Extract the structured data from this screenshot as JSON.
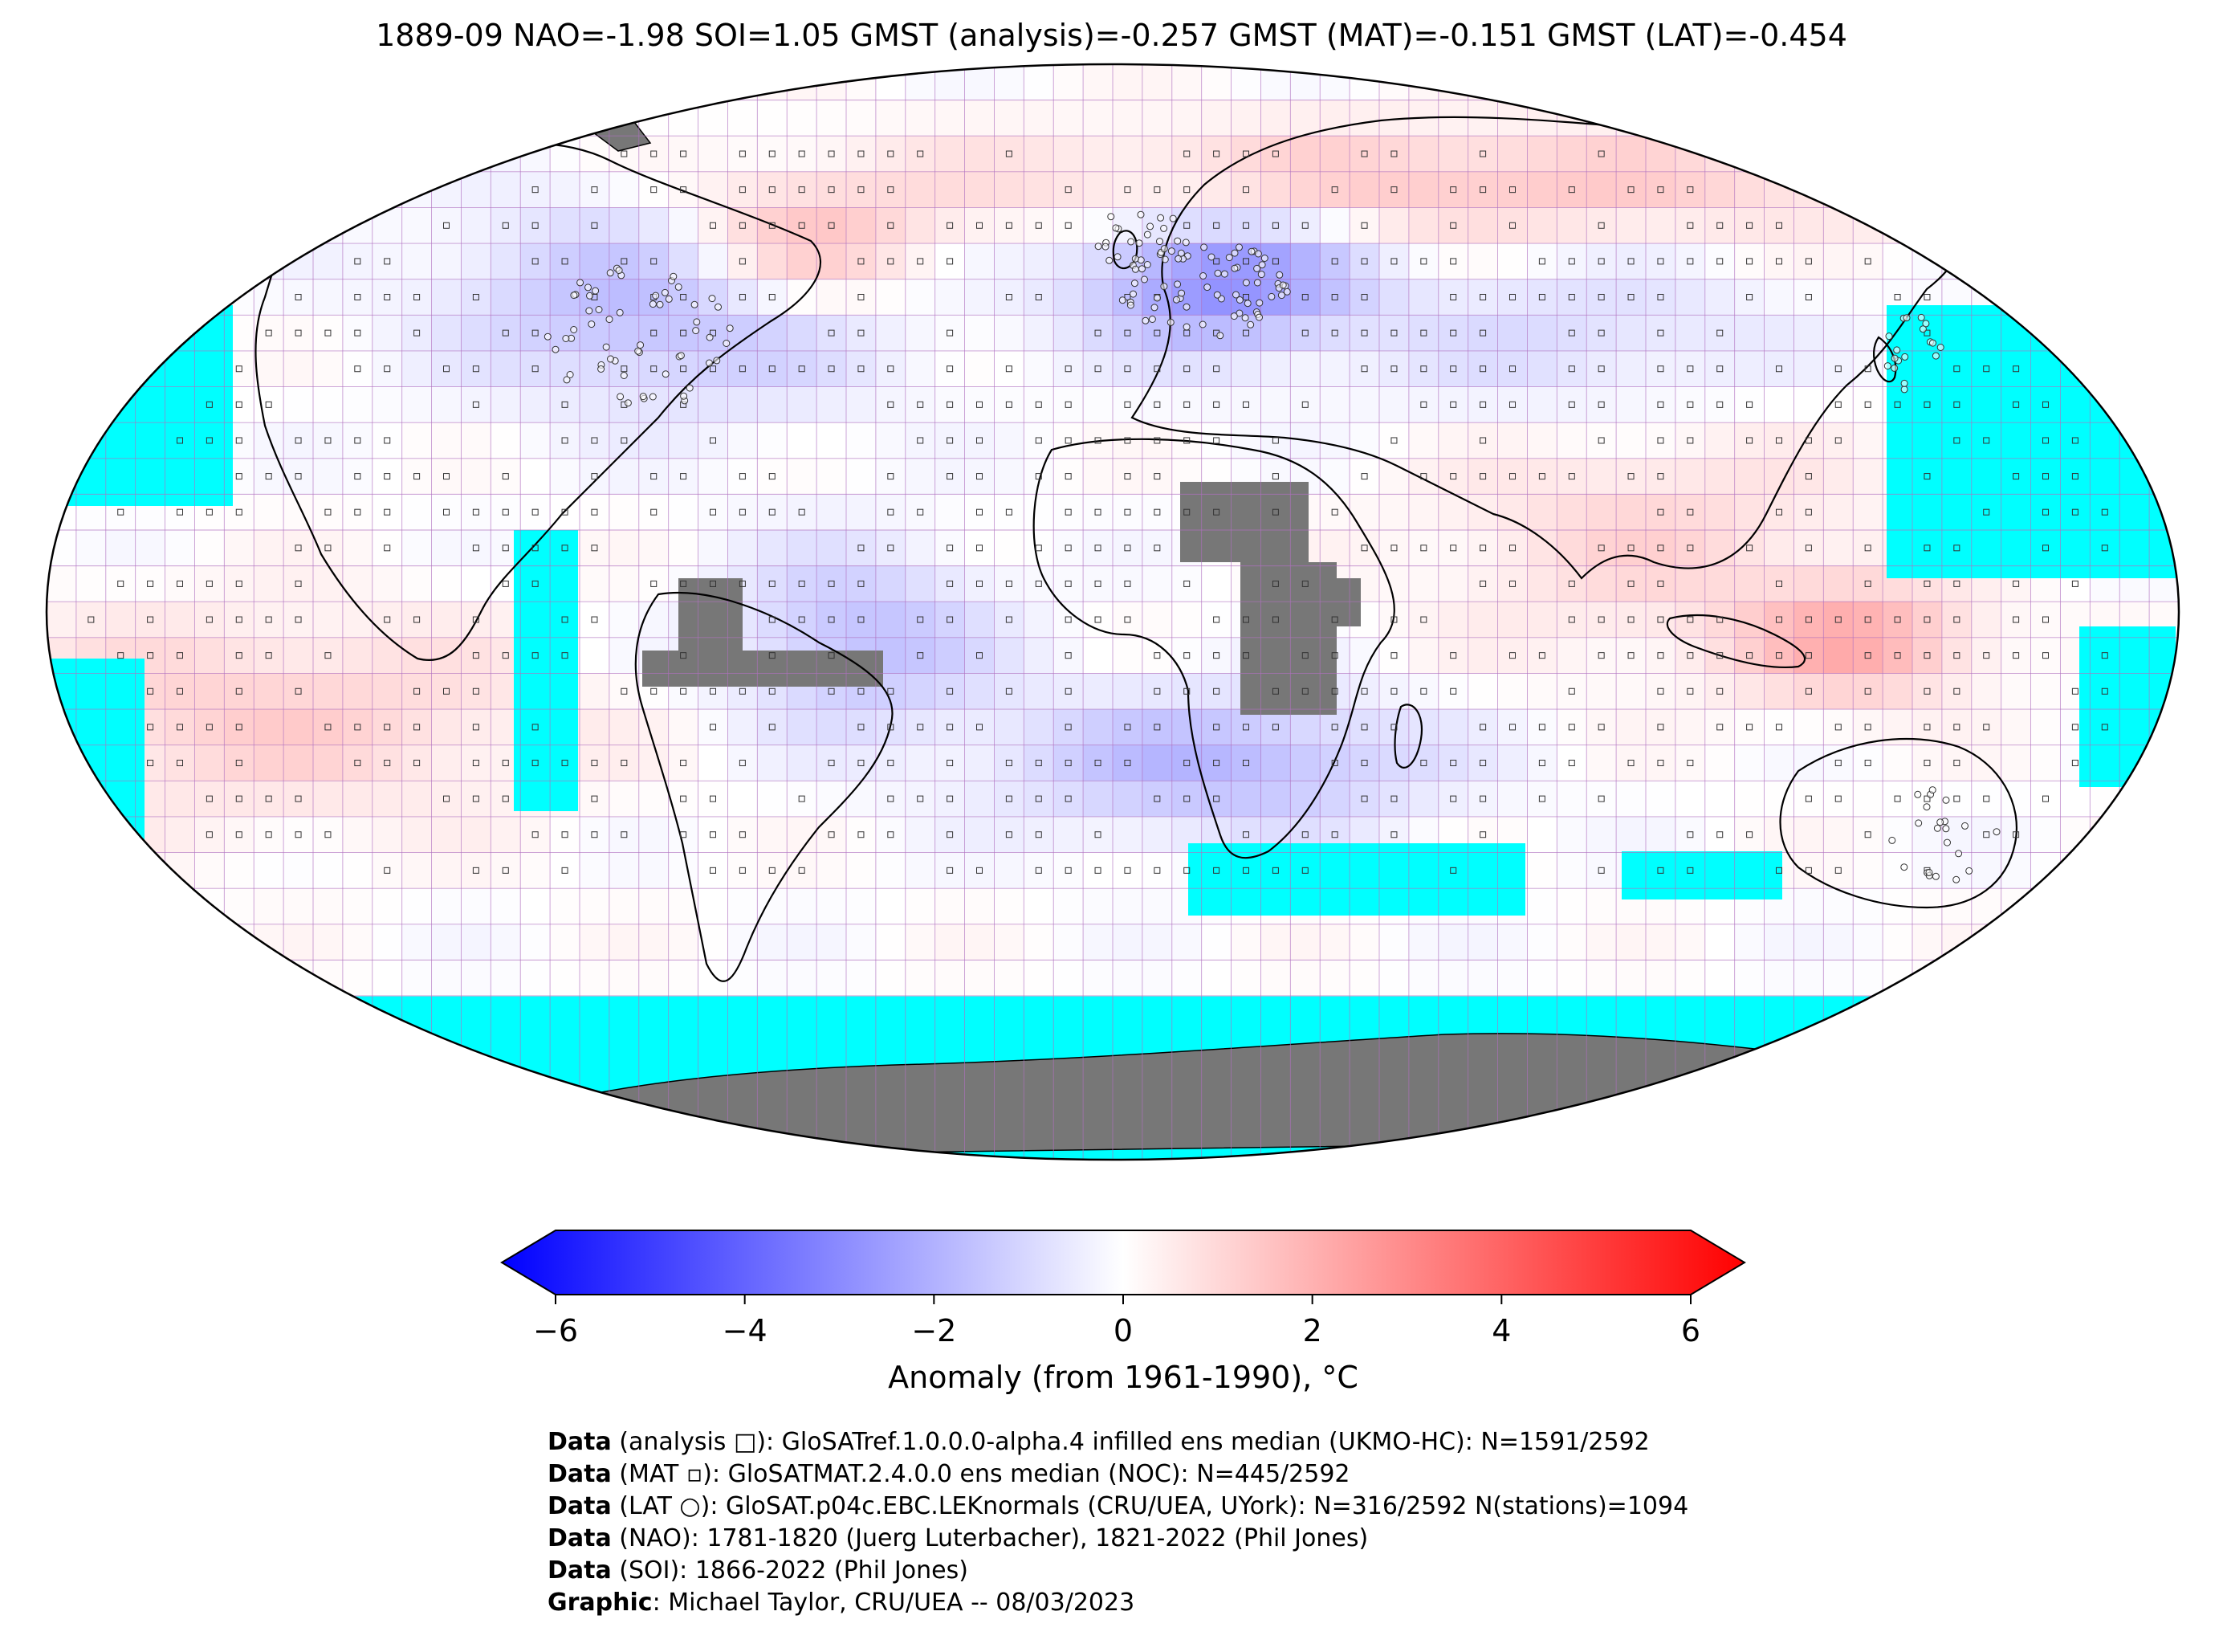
{
  "title": "1889-09 NAO=-1.98 SOI=1.05 GMST (analysis)=-0.257 GMST (MAT)=-0.151 GMST (LAT)=-0.454",
  "colorbar": {
    "ticks": [
      "−6",
      "−4",
      "−2",
      "0",
      "2",
      "4",
      "6"
    ],
    "tick_values": [
      -6,
      -4,
      -2,
      0,
      2,
      4,
      6
    ],
    "label": "Anomaly (from 1961-1990), °C",
    "colors": {
      "min": "#0000ff",
      "mid": "#ffffff",
      "max": "#ff0000"
    }
  },
  "map": {
    "projection": "Robinson",
    "colors": {
      "ocean_nodata": "#00ffff",
      "land_nodata": "#777777",
      "grid": "#b070c0",
      "coast": "#000000"
    }
  },
  "credits": [
    {
      "bold": "Data",
      "text": " (analysis □): GloSATref.1.0.0.0-alpha.4 infilled ens median (UKMO-HC): N=1591/2592"
    },
    {
      "bold": "Data",
      "text": " (MAT ▫): GloSATMAT.2.4.0.0 ens median (NOC): N=445/2592"
    },
    {
      "bold": "Data",
      "text": " (LAT ○): GloSAT.p04c.EBC.LEKnormals (CRU/UEA, UYork): N=316/2592 N(stations)=1094"
    },
    {
      "bold": "Data",
      "text": " (NAO): 1781-1820 (Juerg Luterbacher), 1821-2022 (Phil Jones)"
    },
    {
      "bold": "Data",
      "text": " (SOI): 1866-2022 (Phil Jones)"
    },
    {
      "bold": "Graphic",
      "text": ": Michael Taylor, CRU/UEA -- 08/03/2023"
    }
  ]
}
